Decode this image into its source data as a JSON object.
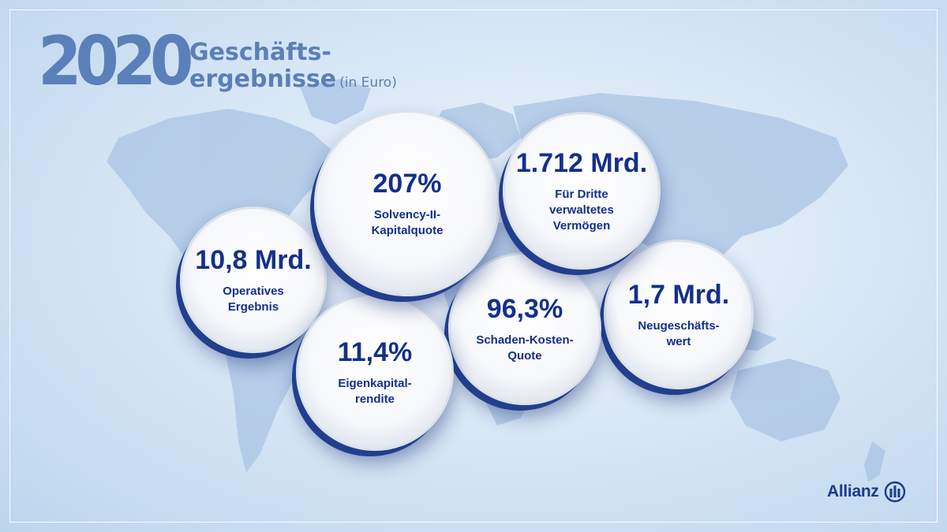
{
  "colors": {
    "title": "#5b7fb8",
    "circle_text": "#13308a",
    "circle_shadow": "#223f8e",
    "brand": "#1c3a8e",
    "map_land": "#a9c4e4"
  },
  "header": {
    "year": "2020",
    "title_line1": "Geschäfts-",
    "title_line2": "ergebnisse",
    "unit": "(in Euro)"
  },
  "kpis": [
    {
      "value": "10,8 Mrd.",
      "label_lines": [
        "Operatives",
        "Ergebnis"
      ]
    },
    {
      "value": "207%",
      "label_lines": [
        "Solvency-II-",
        "Kapitalquote"
      ]
    },
    {
      "value": "11,4%",
      "label_lines": [
        "Eigenkapital-",
        "rendite"
      ]
    },
    {
      "value": "1.712 Mrd.",
      "label_lines": [
        "Für Dritte",
        "verwaltetes",
        "Vermögen"
      ]
    },
    {
      "value": "96,3%",
      "label_lines": [
        "Schaden-Kosten-",
        "Quote"
      ]
    },
    {
      "value": "1,7 Mrd.",
      "label_lines": [
        "Neugeschäfts-",
        "wert"
      ]
    }
  ],
  "logo": {
    "text": "Allianz",
    "icon": "allianz-eagle-pillars-icon"
  }
}
